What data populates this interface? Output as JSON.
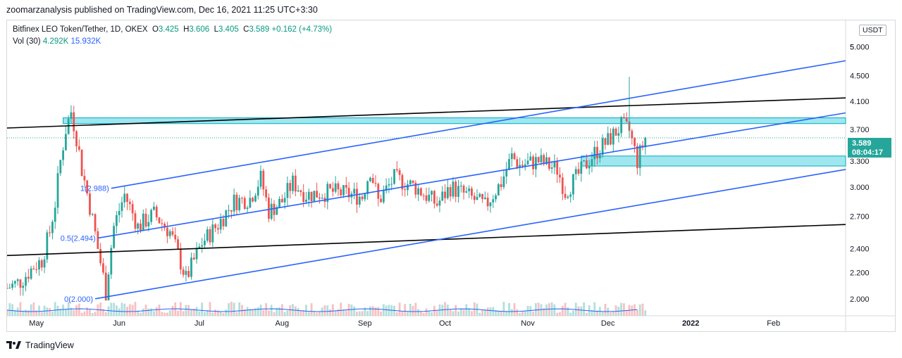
{
  "header": {
    "publisher_line": "zoomarzanalysis published on TradingView.com, Dec 16, 2021 11:25 UTC+3:30"
  },
  "legend": {
    "symbol_line": "Bitfinex LEO Token/Tether, 1D, OKEX",
    "ohlc": {
      "O": "3.425",
      "H": "3.606",
      "L": "3.405",
      "C": "3.589"
    },
    "change": "+0.162 (+4.73%)",
    "volume_label": "Vol (30)",
    "volume_value": "4.292K",
    "volume_ma": "15.932K"
  },
  "currency": "USDT",
  "last_price": {
    "price": "3.589",
    "countdown": "08:04:17"
  },
  "footer": {
    "brand": "TradingView"
  },
  "colors": {
    "up": "#26a69a",
    "down": "#ef5350",
    "channel": "#2962ff",
    "trendline": "#000000",
    "zone_fill": "#80deea",
    "zone_border": "#00acc1",
    "volume_ma": "#2962ff"
  },
  "chart_data": {
    "type": "candlestick",
    "x_ticks": [
      "May",
      "Jun",
      "Jul",
      "Aug",
      "Sep",
      "Oct",
      "Nov",
      "Dec",
      "2022",
      "Feb"
    ],
    "y_ticks": [
      "5",
      "5.000",
      "4.500",
      "4.100",
      "3.700",
      "3.300",
      "3.000",
      "2.700",
      "2.400",
      "2.200",
      "2.000"
    ],
    "y_scale": "log",
    "date_range": [
      "2021-04-20",
      "2022-02-28"
    ],
    "price_range": [
      1.88,
      5.5
    ],
    "candles_close_path": [
      [
        "2021-04-20",
        2.08
      ],
      [
        "2021-04-25",
        2.13
      ],
      [
        "2021-04-30",
        2.25
      ],
      [
        "2021-05-03",
        2.3
      ],
      [
        "2021-05-06",
        2.55
      ],
      [
        "2021-05-08",
        2.83
      ],
      [
        "2021-05-10",
        3.3
      ],
      [
        "2021-05-12",
        3.7
      ],
      [
        "2021-05-14",
        3.95
      ],
      [
        "2021-05-16",
        3.6
      ],
      [
        "2021-05-18",
        3.2
      ],
      [
        "2021-05-21",
        2.8
      ],
      [
        "2021-05-24",
        2.4
      ],
      [
        "2021-05-27",
        2.05
      ],
      [
        "2021-05-30",
        2.6
      ],
      [
        "2021-06-03",
        2.92
      ],
      [
        "2021-06-08",
        2.6
      ],
      [
        "2021-06-14",
        2.72
      ],
      [
        "2021-06-20",
        2.55
      ],
      [
        "2021-06-26",
        2.15
      ],
      [
        "2021-07-02",
        2.45
      ],
      [
        "2021-07-08",
        2.62
      ],
      [
        "2021-07-14",
        2.85
      ],
      [
        "2021-07-20",
        2.88
      ],
      [
        "2021-07-24",
        3.1
      ],
      [
        "2021-07-27",
        2.75
      ],
      [
        "2021-08-01",
        2.85
      ],
      [
        "2021-08-05",
        3.05
      ],
      [
        "2021-08-10",
        2.92
      ],
      [
        "2021-08-20",
        2.95
      ],
      [
        "2021-08-31",
        2.9
      ],
      [
        "2021-09-03",
        3.2
      ],
      [
        "2021-09-06",
        2.85
      ],
      [
        "2021-09-12",
        3.1
      ],
      [
        "2021-09-20",
        3.0
      ],
      [
        "2021-09-28",
        2.82
      ],
      [
        "2021-10-03",
        3.0
      ],
      [
        "2021-10-10",
        2.9
      ],
      [
        "2021-10-16",
        2.8
      ],
      [
        "2021-10-22",
        3.05
      ],
      [
        "2021-10-26",
        3.35
      ],
      [
        "2021-10-29",
        3.25
      ],
      [
        "2021-11-05",
        3.3
      ],
      [
        "2021-11-12",
        3.2
      ],
      [
        "2021-11-15",
        2.95
      ],
      [
        "2021-11-19",
        3.1
      ],
      [
        "2021-11-26",
        3.4
      ],
      [
        "2021-12-01",
        3.55
      ],
      [
        "2021-12-06",
        3.75
      ],
      [
        "2021-12-09",
        3.68
      ],
      [
        "2021-12-12",
        3.3
      ],
      [
        "2021-12-15",
        3.589
      ]
    ],
    "annotations": {
      "fib": [
        {
          "label": "1(2.988)",
          "price": 2.988,
          "date": "2021-05-29"
        },
        {
          "label": "0.5(2.494)",
          "price": 2.494,
          "date": "2021-05-24"
        },
        {
          "label": "0(2.000)",
          "price": 2.0,
          "date": "2021-05-23"
        }
      ],
      "spike_high": 4.48,
      "zones": [
        {
          "from": "2021-05-11",
          "to": "2022-02-28",
          "top": 3.86,
          "bottom": 3.78
        },
        {
          "from": "2021-11-21",
          "to": "2022-02-28",
          "top": 3.36,
          "bottom": 3.24
        }
      ]
    }
  }
}
